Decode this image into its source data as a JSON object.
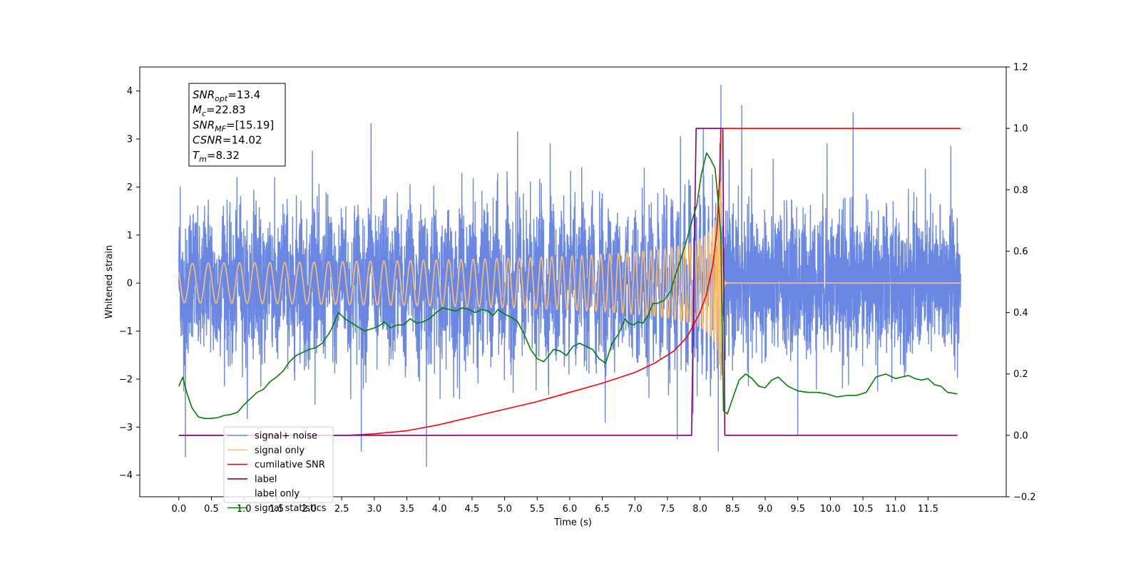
{
  "chart_data": {
    "type": "line",
    "title": "",
    "xlabel": "Time (s)",
    "ylabel": "Whitened strain",
    "y2label": "",
    "xlim": [
      -0.6,
      12.7
    ],
    "ylim": [
      -4.45,
      4.5
    ],
    "y2lim": [
      -0.2,
      1.2
    ],
    "x_ticks": [
      0.0,
      0.5,
      1.0,
      1.5,
      2.0,
      2.5,
      3.0,
      3.5,
      4.0,
      4.5,
      5.0,
      5.5,
      6.0,
      6.5,
      7.0,
      7.5,
      8.0,
      8.5,
      9.0,
      9.5,
      10.0,
      10.5,
      11.0,
      11.5
    ],
    "x_tick_labels": [
      "0.0",
      "0.5",
      "1.0",
      "1.5",
      "2.0",
      "2.5",
      "3.0",
      "3.5",
      "4.0",
      "4.5",
      "5.0",
      "5.5",
      "6.0",
      "6.5",
      "7.0",
      "7.5",
      "8.0",
      "8.5",
      "9.0",
      "9.5",
      "10.0",
      "10.5",
      "11.0",
      "11.5"
    ],
    "y_ticks": [
      -4,
      -3,
      -2,
      -1,
      0,
      1,
      2,
      3,
      4
    ],
    "y_tick_labels": [
      "−4",
      "−3",
      "−2",
      "−1",
      "0",
      "1",
      "2",
      "3",
      "4"
    ],
    "y2_ticks": [
      -0.2,
      0.0,
      0.2,
      0.4,
      0.6,
      0.8,
      1.0,
      1.2
    ],
    "y2_tick_labels": [
      "−0.2",
      "0.0",
      "0.2",
      "0.4",
      "0.6",
      "0.8",
      "1.0",
      "1.2"
    ],
    "grid": false,
    "legend_position": "bottom-left",
    "annotation": {
      "lines": [
        {
          "main": "SNR",
          "sub": "opt",
          "rest": "=13.4"
        },
        {
          "main": "M",
          "sub": "c",
          "rest": "=22.83"
        },
        {
          "main": "SNR",
          "sub": "MF",
          "rest": "=[15.19]"
        },
        {
          "main": "CSNR",
          "sub": "",
          "rest": "=14.02"
        },
        {
          "main": "T",
          "sub": "m",
          "rest": "=8.32"
        }
      ]
    },
    "series": [
      {
        "name": "signal+ noise",
        "axis": "left",
        "color": "#6a87e3",
        "kind": "noise",
        "x_range": [
          0.0,
          12.0
        ],
        "amplitude_typical": 1.5,
        "peaks": [
          {
            "x": 0.02,
            "y": 2.0
          },
          {
            "x": 0.1,
            "y": -3.62
          },
          {
            "x": 2.05,
            "y": 2.75
          },
          {
            "x": 2.8,
            "y": -3.5
          },
          {
            "x": 2.95,
            "y": 3.32
          },
          {
            "x": 3.8,
            "y": -3.82
          },
          {
            "x": 5.2,
            "y": 3.15
          },
          {
            "x": 5.7,
            "y": 2.9
          },
          {
            "x": 7.7,
            "y": 3.05
          },
          {
            "x": 7.65,
            "y": -3.25
          },
          {
            "x": 8.05,
            "y": 3.2
          },
          {
            "x": 8.28,
            "y": -3.5
          },
          {
            "x": 8.32,
            "y": 4.12
          },
          {
            "x": 8.64,
            "y": 3.7
          },
          {
            "x": 9.5,
            "y": -3.15
          },
          {
            "x": 10.35,
            "y": 3.55
          },
          {
            "x": 9.95,
            "y": 2.9
          },
          {
            "x": 11.85,
            "y": 2.85
          }
        ]
      },
      {
        "name": "signal only",
        "axis": "left",
        "color": "#fdbf6f",
        "kind": "chirp",
        "x_range": [
          0.0,
          12.0
        ],
        "merger_time": 8.32,
        "peak_amplitude": 2.1
      },
      {
        "name": "cumilative SNR",
        "axis": "right",
        "color": "#ff0000",
        "kind": "cumulative",
        "x": [
          0.0,
          2.6,
          3.0,
          3.5,
          4.0,
          4.5,
          5.0,
          5.5,
          6.0,
          6.5,
          7.0,
          7.3,
          7.6,
          7.8,
          8.0,
          8.1,
          8.2,
          8.26,
          8.3,
          8.32,
          12.0
        ],
        "y": [
          0.0,
          0.0,
          0.005,
          0.015,
          0.035,
          0.06,
          0.085,
          0.11,
          0.14,
          0.17,
          0.205,
          0.235,
          0.275,
          0.32,
          0.4,
          0.46,
          0.56,
          0.67,
          0.84,
          1.0,
          1.0
        ]
      },
      {
        "name": "label",
        "axis": "right",
        "color": "#800080",
        "kind": "step",
        "x": [
          0.0,
          7.87,
          7.94,
          8.35,
          8.38,
          11.95
        ],
        "y": [
          0.0,
          0.0,
          1.0,
          1.0,
          0.0,
          0.0
        ]
      },
      {
        "name": "label only",
        "axis": "right",
        "color": "#ffffff",
        "kind": "legend-only"
      },
      {
        "name": "signal statistics",
        "axis": "right",
        "color": "#008000",
        "kind": "line",
        "x": [
          0.0,
          0.06,
          0.12,
          0.2,
          0.3,
          0.4,
          0.5,
          0.6,
          0.7,
          0.8,
          0.9,
          1.0,
          1.1,
          1.2,
          1.3,
          1.4,
          1.5,
          1.6,
          1.7,
          1.8,
          1.9,
          2.0,
          2.1,
          2.2,
          2.3,
          2.35,
          2.45,
          2.55,
          2.62,
          2.7,
          2.85,
          3.0,
          3.1,
          3.15,
          3.25,
          3.35,
          3.45,
          3.55,
          3.65,
          3.75,
          3.85,
          3.95,
          4.05,
          4.15,
          4.25,
          4.35,
          4.45,
          4.55,
          4.65,
          4.75,
          4.82,
          4.9,
          5.0,
          5.1,
          5.2,
          5.3,
          5.4,
          5.5,
          5.6,
          5.7,
          5.75,
          5.85,
          5.95,
          6.05,
          6.15,
          6.25,
          6.35,
          6.45,
          6.55,
          6.65,
          6.75,
          6.85,
          6.9,
          6.98,
          7.05,
          7.12,
          7.2,
          7.28,
          7.35,
          7.45,
          7.55,
          7.62,
          7.7,
          7.8,
          7.88,
          7.95,
          8.02,
          8.1,
          8.16,
          8.23,
          8.28,
          8.32,
          8.36,
          8.42,
          8.5,
          8.6,
          8.7,
          8.8,
          8.9,
          9.0,
          9.1,
          9.2,
          9.35,
          9.5,
          9.65,
          9.8,
          9.95,
          10.1,
          10.25,
          10.4,
          10.55,
          10.7,
          10.85,
          11.0,
          11.1,
          11.2,
          11.3,
          11.4,
          11.5,
          11.6,
          11.7,
          11.8,
          11.95
        ],
        "y": [
          0.16,
          0.19,
          0.14,
          0.09,
          0.06,
          0.055,
          0.055,
          0.058,
          0.065,
          0.068,
          0.075,
          0.1,
          0.12,
          0.14,
          0.15,
          0.175,
          0.19,
          0.21,
          0.24,
          0.26,
          0.27,
          0.28,
          0.285,
          0.3,
          0.33,
          0.35,
          0.4,
          0.38,
          0.37,
          0.36,
          0.34,
          0.35,
          0.36,
          0.37,
          0.35,
          0.36,
          0.36,
          0.38,
          0.365,
          0.37,
          0.38,
          0.4,
          0.415,
          0.41,
          0.405,
          0.415,
          0.41,
          0.4,
          0.41,
          0.405,
          0.39,
          0.41,
          0.395,
          0.385,
          0.37,
          0.33,
          0.28,
          0.25,
          0.24,
          0.265,
          0.28,
          0.275,
          0.26,
          0.29,
          0.3,
          0.29,
          0.28,
          0.25,
          0.235,
          0.3,
          0.33,
          0.38,
          0.365,
          0.36,
          0.37,
          0.365,
          0.39,
          0.43,
          0.43,
          0.44,
          0.47,
          0.52,
          0.57,
          0.64,
          0.7,
          0.75,
          0.85,
          0.92,
          0.9,
          0.87,
          0.76,
          0.65,
          0.08,
          0.07,
          0.12,
          0.18,
          0.2,
          0.185,
          0.16,
          0.155,
          0.18,
          0.19,
          0.16,
          0.145,
          0.14,
          0.14,
          0.135,
          0.125,
          0.13,
          0.13,
          0.14,
          0.19,
          0.2,
          0.185,
          0.19,
          0.195,
          0.185,
          0.18,
          0.185,
          0.165,
          0.16,
          0.14,
          0.135
        ]
      }
    ]
  }
}
